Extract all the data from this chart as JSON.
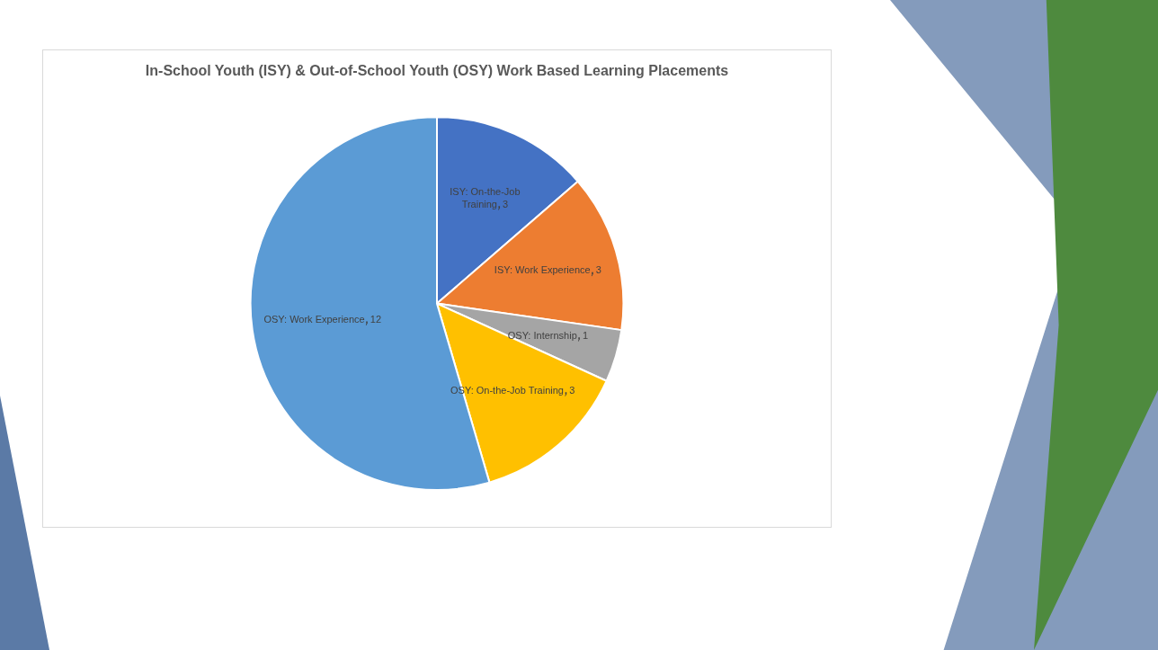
{
  "chart_data": {
    "type": "pie",
    "title": "In-School Youth (ISY) & Out-of-School Youth (OSY) Work Based Learning Placements",
    "categories": [
      "ISY: On-the-Job Training",
      "ISY: Work Experience",
      "OSY: Internship",
      "OSY: On-the-Job Training",
      "OSY: Work Experience"
    ],
    "values": [
      3,
      3,
      1,
      3,
      12
    ],
    "data_labels": true,
    "colors": [
      "#4472c4",
      "#ed7d31",
      "#a5a5a5",
      "#ffc000",
      "#5b9bd5"
    ],
    "legend": false
  }
}
